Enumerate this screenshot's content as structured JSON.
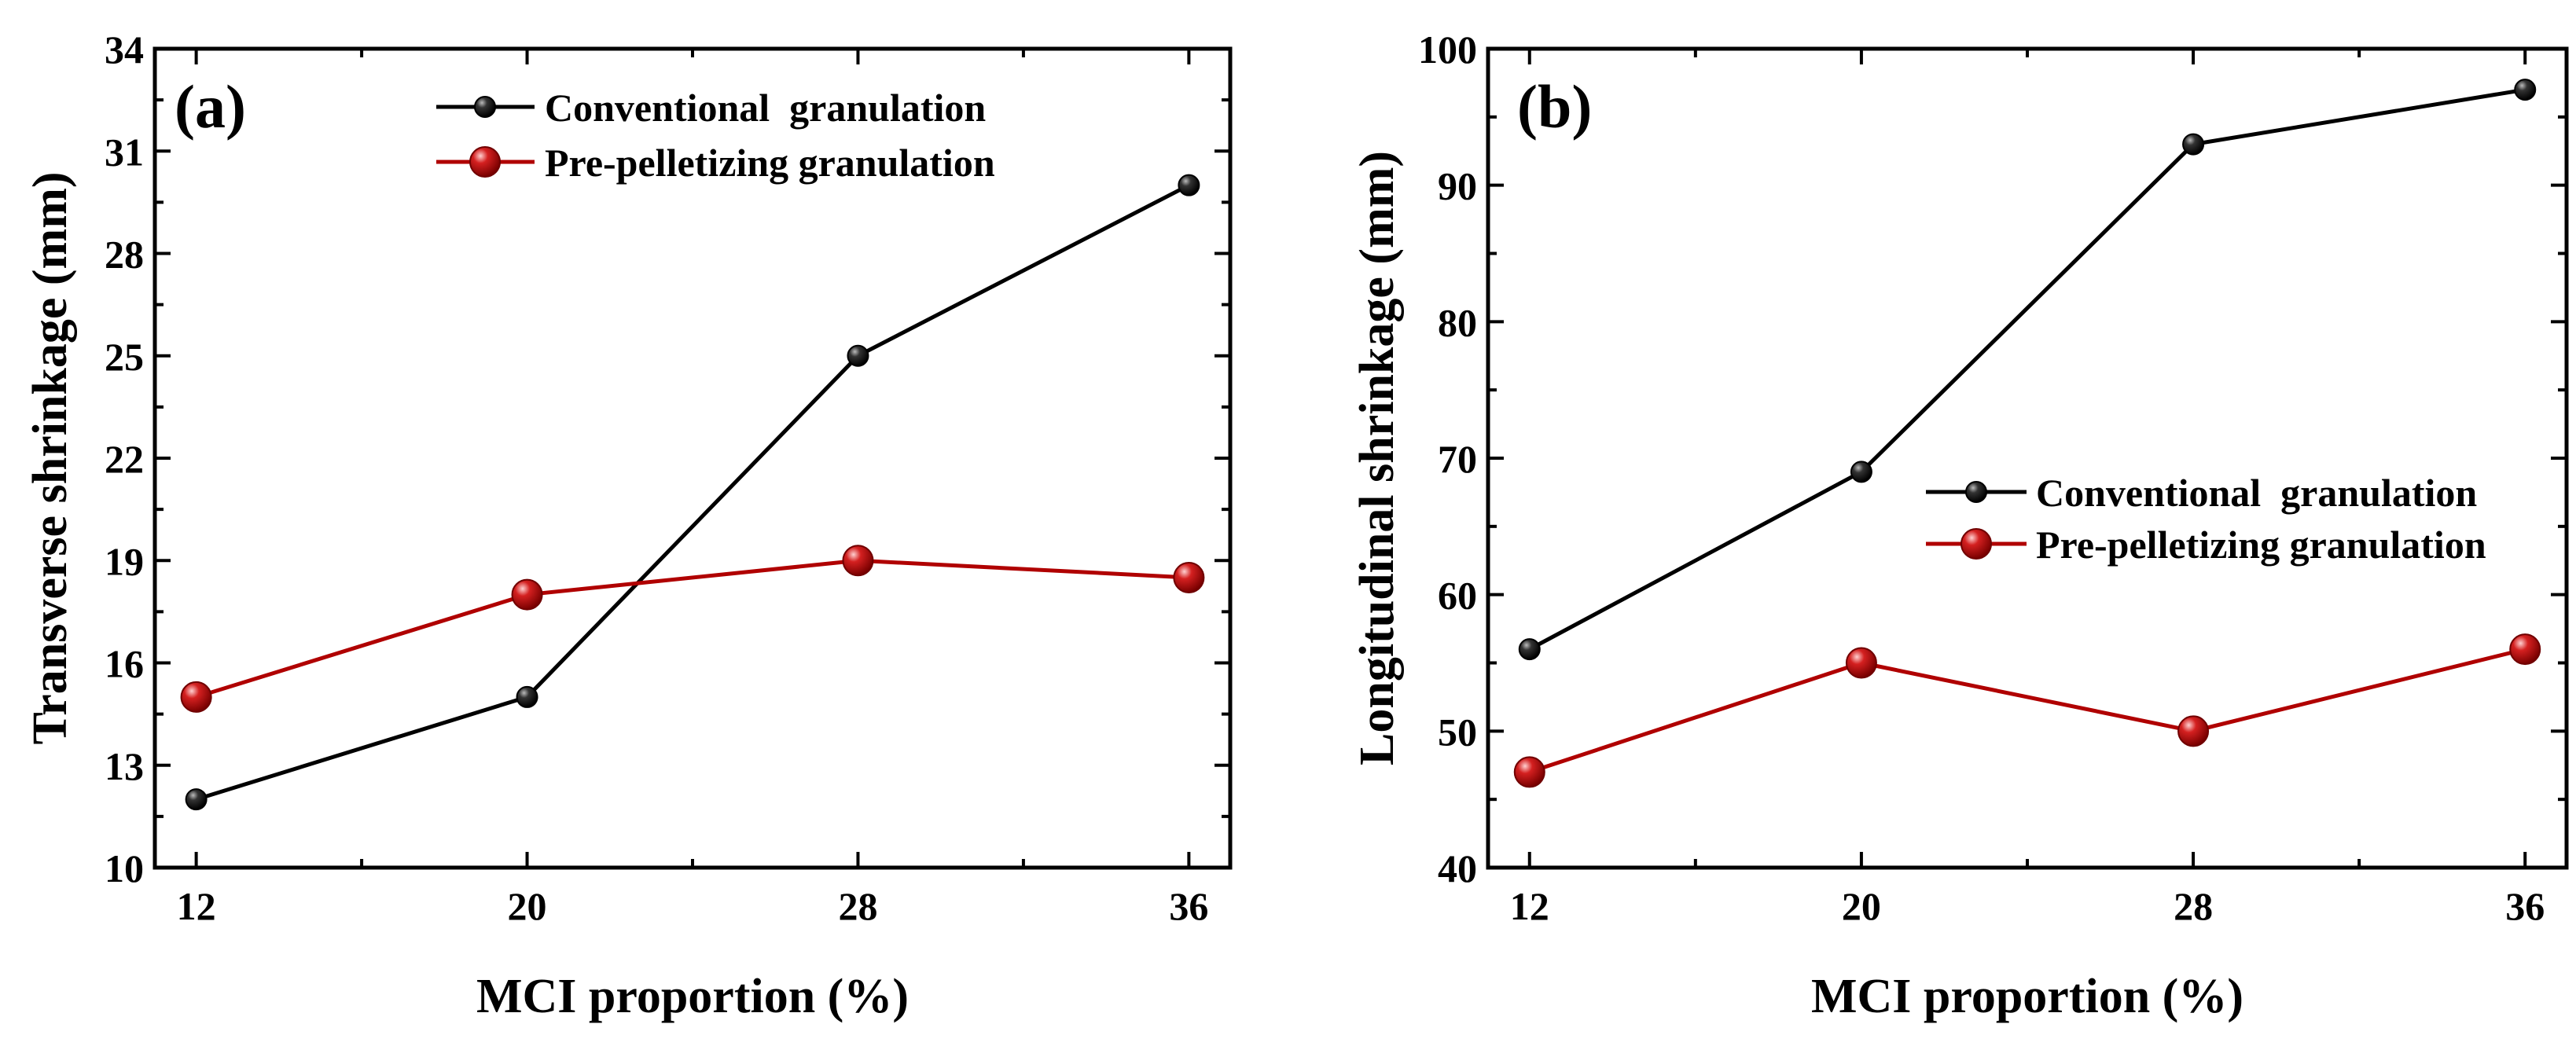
{
  "chart_data": [
    {
      "type": "line",
      "panel_label": "(a)",
      "xlabel": "MCI proportion (%)",
      "ylabel": "Transverse shrinkage (mm)",
      "x": [
        12,
        20,
        28,
        36
      ],
      "xlim": [
        11,
        37
      ],
      "xticks": [
        "12",
        "20",
        "28",
        "36"
      ],
      "ylim": [
        10,
        34
      ],
      "yticks": [
        "10",
        "13",
        "16",
        "19",
        "22",
        "25",
        "28",
        "31",
        "34"
      ],
      "legend_position": "top-center",
      "series": [
        {
          "name": "Conventional  granulation",
          "values": [
            12,
            15,
            25,
            30
          ],
          "color": "#000000",
          "marker_color": "#111111"
        },
        {
          "name": "Pre-pelletizing granulation",
          "values": [
            15,
            18,
            19,
            18.5
          ],
          "color": "#b00000",
          "marker_color": "#c41414"
        }
      ]
    },
    {
      "type": "line",
      "panel_label": "(b)",
      "xlabel": "MCI proportion (%)",
      "ylabel": "Longitudinal shrinkage (mm)",
      "x": [
        12,
        20,
        28,
        36
      ],
      "xlim": [
        11,
        37
      ],
      "xticks": [
        "12",
        "20",
        "28",
        "36"
      ],
      "ylim": [
        40,
        100
      ],
      "yticks": [
        "40",
        "50",
        "60",
        "70",
        "80",
        "90",
        "100"
      ],
      "legend_position": "center-right",
      "series": [
        {
          "name": "Conventional  granulation",
          "values": [
            56,
            69,
            93,
            97
          ],
          "color": "#000000",
          "marker_color": "#111111"
        },
        {
          "name": "Pre-pelletizing granulation",
          "values": [
            47,
            55,
            50,
            56
          ],
          "color": "#b00000",
          "marker_color": "#c41414"
        }
      ]
    }
  ]
}
